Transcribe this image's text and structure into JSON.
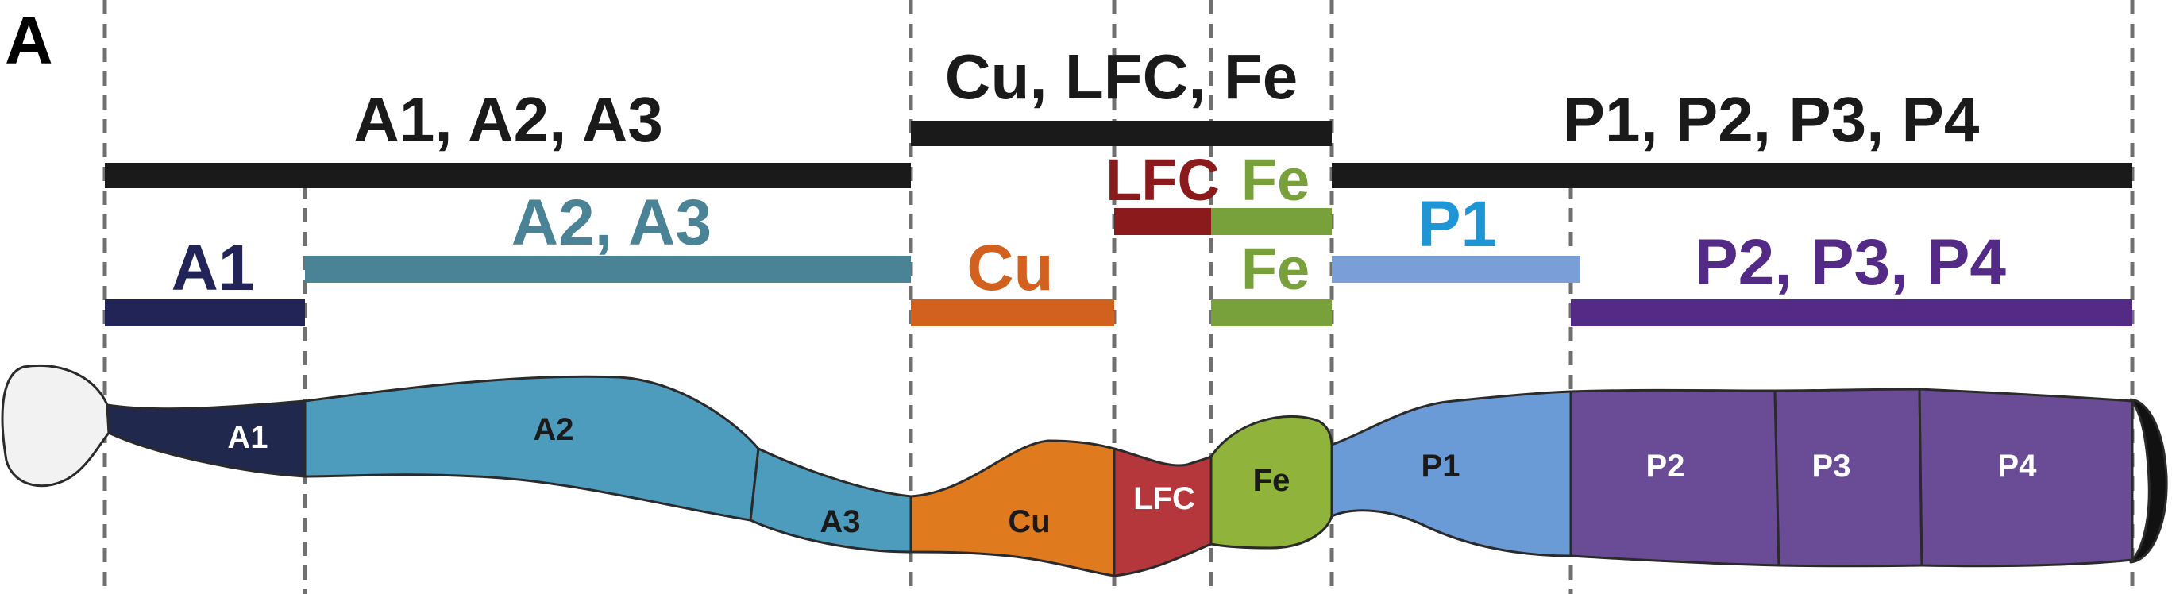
{
  "panel_letter": "A",
  "groups": [
    {
      "id": "anterior",
      "label": "A1, A2, A3",
      "color": "#1a1a1a"
    },
    {
      "id": "middle",
      "label": "Cu, LFC, Fe",
      "color": "#1a1a1a"
    },
    {
      "id": "posterior",
      "label": "P1, P2, P3, P4",
      "color": "#1a1a1a"
    }
  ],
  "subgroups": [
    {
      "id": "a1",
      "label": "A1",
      "color": "#222357"
    },
    {
      "id": "a2a3",
      "label": "A2, A3",
      "color": "#4a8296"
    },
    {
      "id": "cu",
      "label": "Cu",
      "color": "#d2601e"
    },
    {
      "id": "lfc",
      "label": "LFC",
      "color": "#8a1a1c"
    },
    {
      "id": "fe_top",
      "label": "Fe",
      "color": "#79a13b"
    },
    {
      "id": "fe_bottom",
      "label": "Fe",
      "color": "#79a13b"
    },
    {
      "id": "p1",
      "label": "P1",
      "color": "#1e96d6"
    },
    {
      "id": "p2p3p4",
      "label": "P2, P3, P4",
      "color": "#532a85"
    }
  ],
  "segments": [
    {
      "id": "a1",
      "label": "A1",
      "fill": "#20284d",
      "text": "#ffffff"
    },
    {
      "id": "a2",
      "label": "A2",
      "fill": "#4d9bbd",
      "text": "#1a1a1a"
    },
    {
      "id": "a3",
      "label": "A3",
      "fill": "#4d9bbd",
      "text": "#1a1a1a"
    },
    {
      "id": "cu",
      "label": "Cu",
      "fill": "#e07a1e",
      "text": "#1a1a1a"
    },
    {
      "id": "lfc",
      "label": "LFC",
      "fill": "#b5373b",
      "text": "#ffffff"
    },
    {
      "id": "fe",
      "label": "Fe",
      "fill": "#8fb33b",
      "text": "#1a1a1a"
    },
    {
      "id": "p1",
      "label": "P1",
      "fill": "#6a9bd6",
      "text": "#1a1a1a"
    },
    {
      "id": "p2",
      "label": "P2",
      "fill": "#6a4c96",
      "text": "#ffffff"
    },
    {
      "id": "p3",
      "label": "P3",
      "fill": "#6a4c96",
      "text": "#ffffff"
    },
    {
      "id": "p4",
      "label": "P4",
      "fill": "#6a4c96",
      "text": "#ffffff"
    }
  ],
  "crop_fill": "#f2f2f2",
  "rectum_fill": "#111111",
  "divider_color": "#707070"
}
